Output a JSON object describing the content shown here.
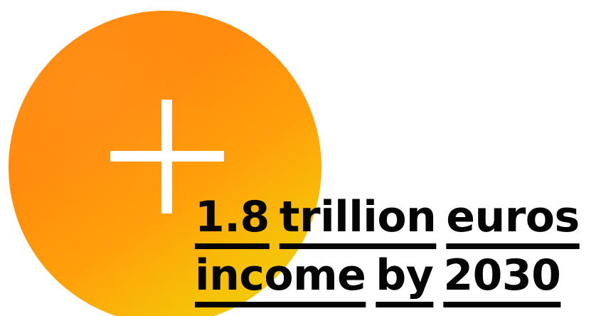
{
  "graphic": {
    "icon": "plus-icon",
    "colors": {
      "gradient_start": "#ff8a12",
      "gradient_mid": "#ffa00a",
      "gradient_end": "#ead70a",
      "icon": "#ffffff",
      "text": "#050505"
    }
  },
  "headline": {
    "lines": [
      [
        "1.8",
        "trillion",
        "euros"
      ],
      [
        "income",
        "by",
        "2030"
      ]
    ]
  }
}
